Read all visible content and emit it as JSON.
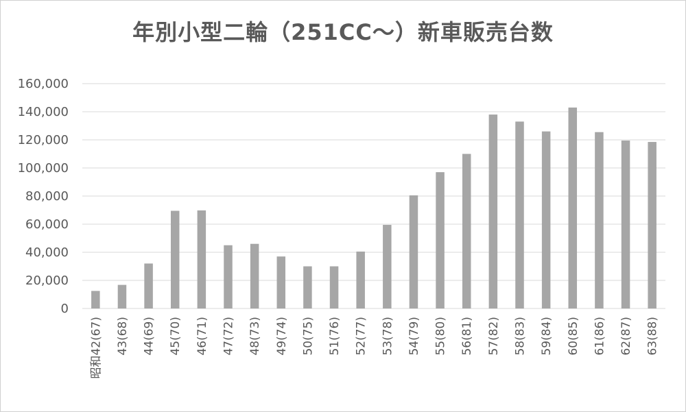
{
  "chart_data": {
    "type": "bar",
    "title": "年別小型二輪（251CC～）新車販売台数",
    "xlabel": "",
    "ylabel": "",
    "ylim": [
      0,
      160000
    ],
    "yticks": [
      0,
      20000,
      40000,
      60000,
      80000,
      100000,
      120000,
      140000,
      160000
    ],
    "ytick_labels": [
      "0",
      "20,000",
      "40,000",
      "60,000",
      "80,000",
      "100,000",
      "120,000",
      "140,000",
      "160,000"
    ],
    "grid": true,
    "legend": "none",
    "categories": [
      "昭和42(67)",
      "43(68)",
      "44(69)",
      "45(70)",
      "46(71)",
      "47(72)",
      "48(73)",
      "49(74)",
      "50(75)",
      "51(76)",
      "52(77)",
      "53(78)",
      "54(79)",
      "55(80)",
      "56(81)",
      "57(82)",
      "58(83)",
      "59(84)",
      "60(85)",
      "61(86)",
      "62(87)",
      "63(88)"
    ],
    "values": [
      12500,
      16800,
      32000,
      69500,
      69800,
      45000,
      46000,
      37000,
      30000,
      30000,
      40500,
      59500,
      80500,
      97000,
      110000,
      138000,
      133000,
      126000,
      143000,
      125500,
      119500,
      118500
    ],
    "colors": {
      "bar": "#a6a6a6",
      "grid": "#d9d9d9",
      "text": "#595959"
    }
  }
}
